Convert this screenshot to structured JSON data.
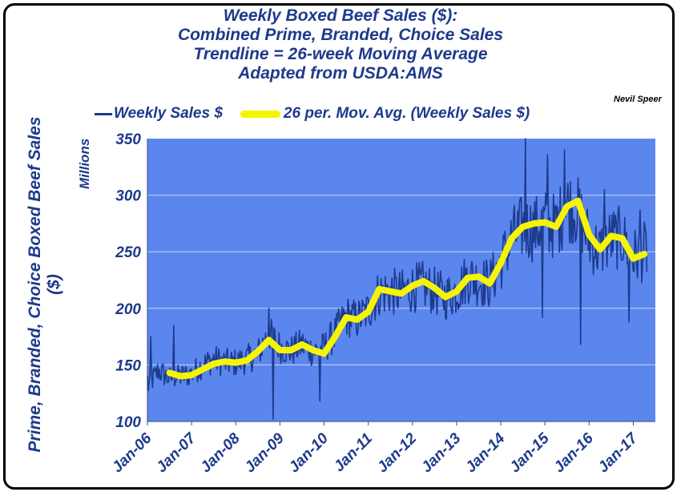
{
  "credit": "Nevil Speer",
  "chart_data": {
    "type": "line",
    "title_lines": [
      "Weekly Boxed Beef Sales ($):",
      "Combined Prime, Branded, Choice Sales",
      "Trendline = 26-week Moving Average",
      "Adapted from USDA:AMS"
    ],
    "ylabel_lines": [
      "Prime, Branded, Choice Boxed Beef Sales",
      "($)"
    ],
    "y_units": "Millions",
    "ylim": [
      100,
      350
    ],
    "yticks": [
      "100",
      "150",
      "200",
      "250",
      "300",
      "350"
    ],
    "x_ticklabels": [
      "Jan-06",
      "Jan-07",
      "Jan-08",
      "Jan-09",
      "Jan-10",
      "Jan-11",
      "Jan-12",
      "Jan-13",
      "Jan-14",
      "Jan-15",
      "Jan-16",
      "Jan-17"
    ],
    "xlim_years": [
      2006.0,
      2017.5
    ],
    "grid": true,
    "legend_position": "top",
    "plot_bg_color": "#5b86ee",
    "series": [
      {
        "name": "Weekly Sales $",
        "color": "#1d3a8c",
        "style": "line",
        "anchor_points": [
          [
            2006.0,
            130
          ],
          [
            2006.25,
            145
          ],
          [
            2006.5,
            138
          ],
          [
            2006.75,
            140
          ],
          [
            2007.0,
            142
          ],
          [
            2007.25,
            150
          ],
          [
            2007.5,
            155
          ],
          [
            2007.75,
            152
          ],
          [
            2008.0,
            152
          ],
          [
            2008.25,
            155
          ],
          [
            2008.5,
            160
          ],
          [
            2008.75,
            178
          ],
          [
            2009.0,
            166
          ],
          [
            2009.25,
            162
          ],
          [
            2009.5,
            168
          ],
          [
            2009.75,
            162
          ],
          [
            2010.0,
            165
          ],
          [
            2010.25,
            178
          ],
          [
            2010.5,
            193
          ],
          [
            2010.75,
            190
          ],
          [
            2011.0,
            198
          ],
          [
            2011.25,
            214
          ],
          [
            2011.5,
            215
          ],
          [
            2011.75,
            213
          ],
          [
            2012.0,
            218
          ],
          [
            2012.25,
            220
          ],
          [
            2012.5,
            215
          ],
          [
            2012.75,
            210
          ],
          [
            2013.0,
            215
          ],
          [
            2013.25,
            228
          ],
          [
            2013.5,
            224
          ],
          [
            2013.75,
            222
          ],
          [
            2014.0,
            240
          ],
          [
            2014.25,
            262
          ],
          [
            2014.5,
            272
          ],
          [
            2014.75,
            270
          ],
          [
            2015.0,
            276
          ],
          [
            2015.25,
            272
          ],
          [
            2015.5,
            292
          ],
          [
            2015.75,
            285
          ],
          [
            2016.0,
            260
          ],
          [
            2016.25,
            250
          ],
          [
            2016.5,
            262
          ],
          [
            2016.75,
            262
          ],
          [
            2017.0,
            245
          ],
          [
            2017.25,
            250
          ]
        ],
        "notable_points": [
          [
            2006.0,
            140
          ],
          [
            2006.08,
            175
          ],
          [
            2006.6,
            185
          ],
          [
            2008.85,
            102
          ],
          [
            2008.75,
            200
          ],
          [
            2009.9,
            118
          ],
          [
            2014.55,
            350
          ],
          [
            2015.45,
            340
          ],
          [
            2015.05,
            336
          ],
          [
            2015.8,
            168
          ],
          [
            2016.35,
            305
          ],
          [
            2016.9,
            188
          ],
          [
            2017.15,
            287
          ],
          [
            2014.95,
            192
          ]
        ]
      },
      {
        "name": "26 per. Mov. Avg. (Weekly Sales $)",
        "color": "#f5f500",
        "style": "thick-line",
        "points": [
          [
            2006.5,
            143
          ],
          [
            2006.75,
            140
          ],
          [
            2007.0,
            141
          ],
          [
            2007.25,
            146
          ],
          [
            2007.5,
            151
          ],
          [
            2007.75,
            153
          ],
          [
            2008.0,
            152
          ],
          [
            2008.25,
            154
          ],
          [
            2008.5,
            162
          ],
          [
            2008.75,
            172
          ],
          [
            2009.0,
            163
          ],
          [
            2009.25,
            163
          ],
          [
            2009.5,
            168
          ],
          [
            2009.75,
            163
          ],
          [
            2010.0,
            160
          ],
          [
            2010.25,
            175
          ],
          [
            2010.5,
            192
          ],
          [
            2010.75,
            190
          ],
          [
            2011.0,
            197
          ],
          [
            2011.25,
            217
          ],
          [
            2011.5,
            215
          ],
          [
            2011.75,
            213
          ],
          [
            2012.0,
            220
          ],
          [
            2012.25,
            224
          ],
          [
            2012.5,
            218
          ],
          [
            2012.75,
            210
          ],
          [
            2013.0,
            215
          ],
          [
            2013.25,
            227
          ],
          [
            2013.5,
            228
          ],
          [
            2013.75,
            222
          ],
          [
            2014.0,
            240
          ],
          [
            2014.25,
            262
          ],
          [
            2014.5,
            272
          ],
          [
            2014.75,
            275
          ],
          [
            2015.0,
            276
          ],
          [
            2015.25,
            272
          ],
          [
            2015.5,
            290
          ],
          [
            2015.75,
            295
          ],
          [
            2016.0,
            265
          ],
          [
            2016.25,
            252
          ],
          [
            2016.5,
            264
          ],
          [
            2016.75,
            262
          ],
          [
            2017.0,
            244
          ],
          [
            2017.25,
            248
          ]
        ]
      }
    ]
  }
}
